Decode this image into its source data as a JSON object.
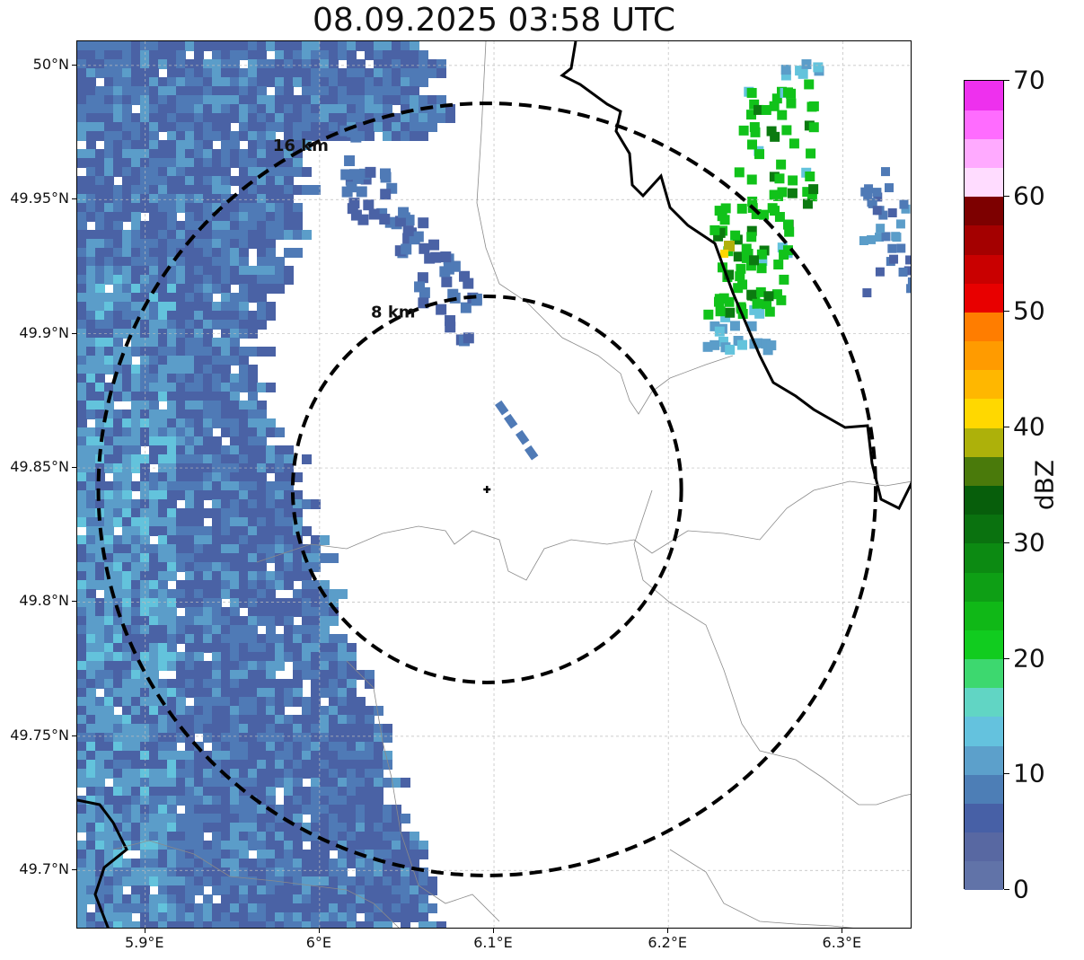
{
  "title": "08.09.2025 03:58 UTC",
  "map": {
    "extent": {
      "lon_min": 5.861,
      "lon_max": 6.34,
      "lat_min": 49.678,
      "lat_max": 50.009
    },
    "radar_site": {
      "lon": 6.096,
      "lat": 49.842
    },
    "rings": [
      {
        "label": "8 km",
        "radius_km": 8
      },
      {
        "label": "16 km",
        "radius_km": 16
      }
    ],
    "x_ticks": [
      {
        "value": 5.9,
        "label": "5.9°E"
      },
      {
        "value": 6.0,
        "label": "6°E"
      },
      {
        "value": 6.1,
        "label": "6.1°E"
      },
      {
        "value": 6.2,
        "label": "6.2°E"
      },
      {
        "value": 6.3,
        "label": "6.3°E"
      }
    ],
    "y_ticks": [
      {
        "value": 50.0,
        "label": "50°N"
      },
      {
        "value": 49.95,
        "label": "49.95°N"
      },
      {
        "value": 49.9,
        "label": "49.9°N"
      },
      {
        "value": 49.85,
        "label": "49.85°N"
      },
      {
        "value": 49.8,
        "label": "49.8°N"
      },
      {
        "value": 49.75,
        "label": "49.75°N"
      },
      {
        "value": 49.7,
        "label": "49.7°N"
      }
    ],
    "grid": true,
    "precipitation_colors": {
      "weak_dark": "#4a62a5",
      "weak_mid": "#4f7ab6",
      "weak_light": "#5b9dc9",
      "cyan": "#63c3dc",
      "green": "#11c21a",
      "dark_green": "#0b7a10",
      "olive": "#b0b10b",
      "yellow": "#ffd600"
    }
  },
  "colorbar": {
    "label": "dBZ",
    "min": 0,
    "max": 70,
    "ticks": [
      "0",
      "10",
      "20",
      "30",
      "40",
      "50",
      "60",
      "70"
    ],
    "tick_values": [
      0,
      10,
      20,
      30,
      40,
      50,
      60,
      70
    ],
    "colors": [
      "#6173a8",
      "#5868a2",
      "#4760a6",
      "#4d7eb6",
      "#5ca0cb",
      "#64c2de",
      "#61d5c4",
      "#3dd86f",
      "#11cc1f",
      "#10b817",
      "#0e9f15",
      "#0c8a12",
      "#0a720f",
      "#075e0b",
      "#4a7a0b",
      "#adb10a",
      "#ffd800",
      "#ffb700",
      "#ff9b00",
      "#ff7d00",
      "#e80000",
      "#c90000",
      "#a40000",
      "#7d0000",
      "#ffdcff",
      "#ffaaff",
      "#ff6cff",
      "#ee30ee"
    ]
  }
}
